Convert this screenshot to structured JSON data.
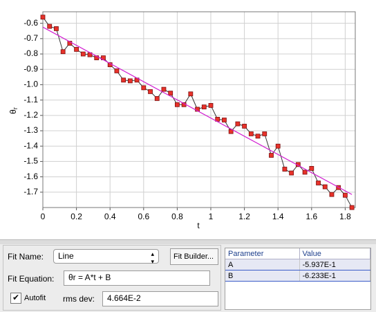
{
  "chart_data": {
    "type": "line",
    "y_label": "θ",
    "y_label_sub": "r",
    "x_label": "t",
    "x": [
      0,
      0.04,
      0.08,
      0.12,
      0.16,
      0.2,
      0.24,
      0.28,
      0.32,
      0.36,
      0.4,
      0.44,
      0.48,
      0.52,
      0.56,
      0.6,
      0.64,
      0.68,
      0.72,
      0.76,
      0.8,
      0.84,
      0.88,
      0.92,
      0.96,
      1.0,
      1.04,
      1.08,
      1.12,
      1.16,
      1.2,
      1.24,
      1.28,
      1.32,
      1.36,
      1.4,
      1.44,
      1.48,
      1.52,
      1.56,
      1.6,
      1.64,
      1.68,
      1.72,
      1.76,
      1.8,
      1.84
    ],
    "series": [
      {
        "color": "#e8322a",
        "line_color": "#333333",
        "values": [
          -0.56,
          -0.62,
          -0.635,
          -0.785,
          -0.73,
          -0.77,
          -0.8,
          -0.805,
          -0.825,
          -0.825,
          -0.87,
          -0.91,
          -0.97,
          -0.975,
          -0.97,
          -1.02,
          -1.045,
          -1.09,
          -1.03,
          -1.055,
          -1.13,
          -1.13,
          -1.06,
          -1.16,
          -1.145,
          -1.135,
          -1.225,
          -1.23,
          -1.305,
          -1.255,
          -1.27,
          -1.32,
          -1.335,
          -1.32,
          -1.46,
          -1.4,
          -1.55,
          -1.575,
          -1.52,
          -1.57,
          -1.545,
          -1.64,
          -1.665,
          -1.715,
          -1.67,
          -1.72,
          -1.8
        ]
      },
      {
        "color": "#d21ed2",
        "x": [
          0,
          1.84
        ],
        "values": [
          -0.625,
          -1.715
        ]
      }
    ],
    "xlim": [
      0,
      1.86
    ],
    "ylim": [
      -1.8,
      -0.525
    ],
    "xticks": [
      0,
      0.2,
      0.4,
      0.6,
      0.8,
      1.0,
      1.2,
      1.4,
      1.6,
      1.8
    ],
    "yticks": [
      -0.6,
      -0.7,
      -0.8,
      -0.9,
      {
        "value": -1.0,
        "label": "-1.0"
      },
      -1.1,
      -1.2,
      -1.3,
      -1.4,
      -1.5,
      -1.6,
      -1.7
    ],
    "grid": true
  },
  "ui": {
    "fit_name_label": "Fit Name:",
    "fit_name": "Line",
    "fit_builder": "Fit Builder...",
    "fit_equation_label": "Fit Equation:",
    "fit_equation": "θr = A*t + B",
    "autofit": "Autofit",
    "rms_label": "rms dev:",
    "rms_value": "4.664E-2"
  },
  "table": {
    "header": [
      "Parameter",
      "Value"
    ],
    "rows": [
      [
        "A",
        "-5.937E-1"
      ],
      [
        "B",
        "-6.233E-1"
      ]
    ]
  }
}
